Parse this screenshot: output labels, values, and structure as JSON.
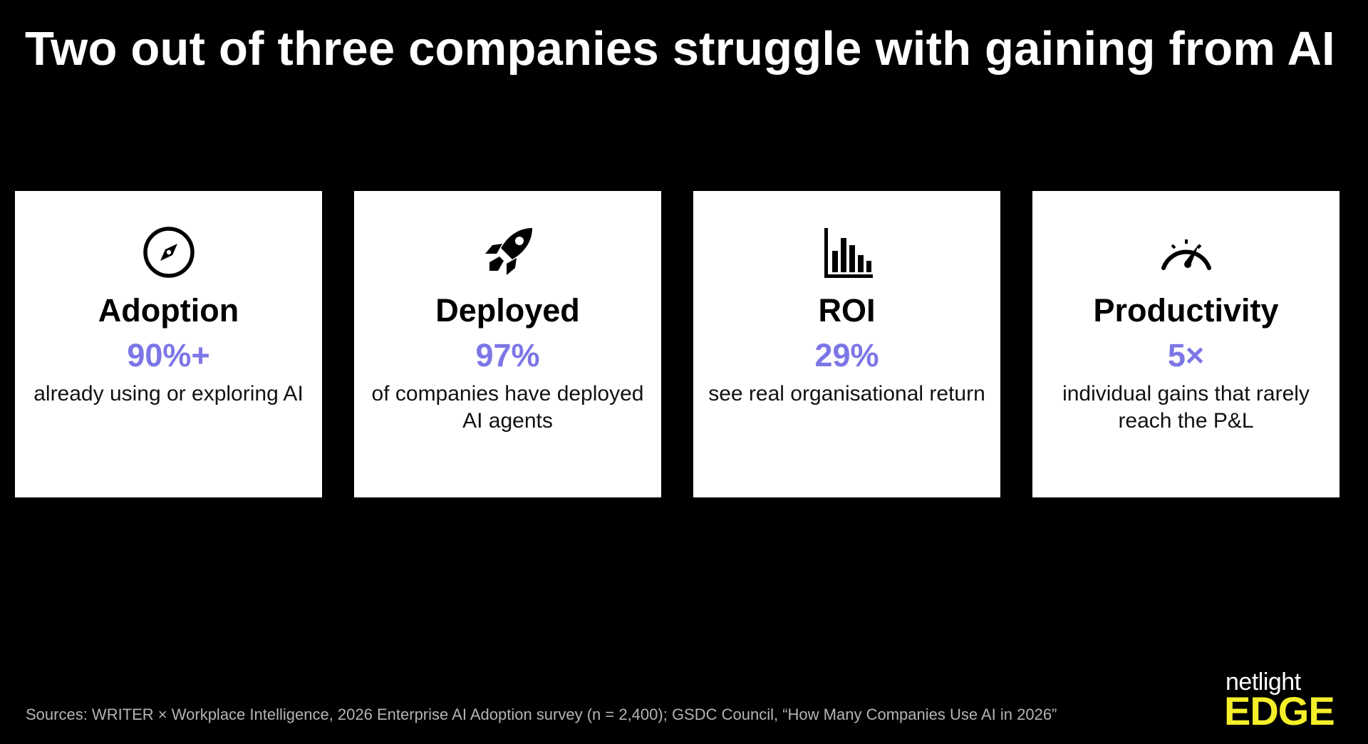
{
  "title": "Two out of three companies struggle with gaining from AI",
  "colors": {
    "background": "#000000",
    "card": "#ffffff",
    "accent": "#7c76e6",
    "logo_accent": "#f5ef2a"
  },
  "cards": [
    {
      "icon": "compass-icon",
      "heading": "Adoption",
      "stat": "90%+",
      "description": "already using or exploring AI"
    },
    {
      "icon": "rocket-icon",
      "heading": "Deployed",
      "stat": "97%",
      "description": "of companies have deployed AI agents"
    },
    {
      "icon": "bar-chart-icon",
      "heading": "ROI",
      "stat": "29%",
      "description": "see real organisational return"
    },
    {
      "icon": "speedometer-icon",
      "heading": "Productivity",
      "stat": "5×",
      "description": "individual gains that rarely reach the P&L"
    }
  ],
  "sources": "Sources: WRITER × Workplace Intelligence, 2026 Enterprise AI Adoption survey (n = 2,400); GSDC Council, “How Many Companies Use AI in 2026”",
  "logo": {
    "top": "netlight",
    "bottom": "EDGE"
  }
}
